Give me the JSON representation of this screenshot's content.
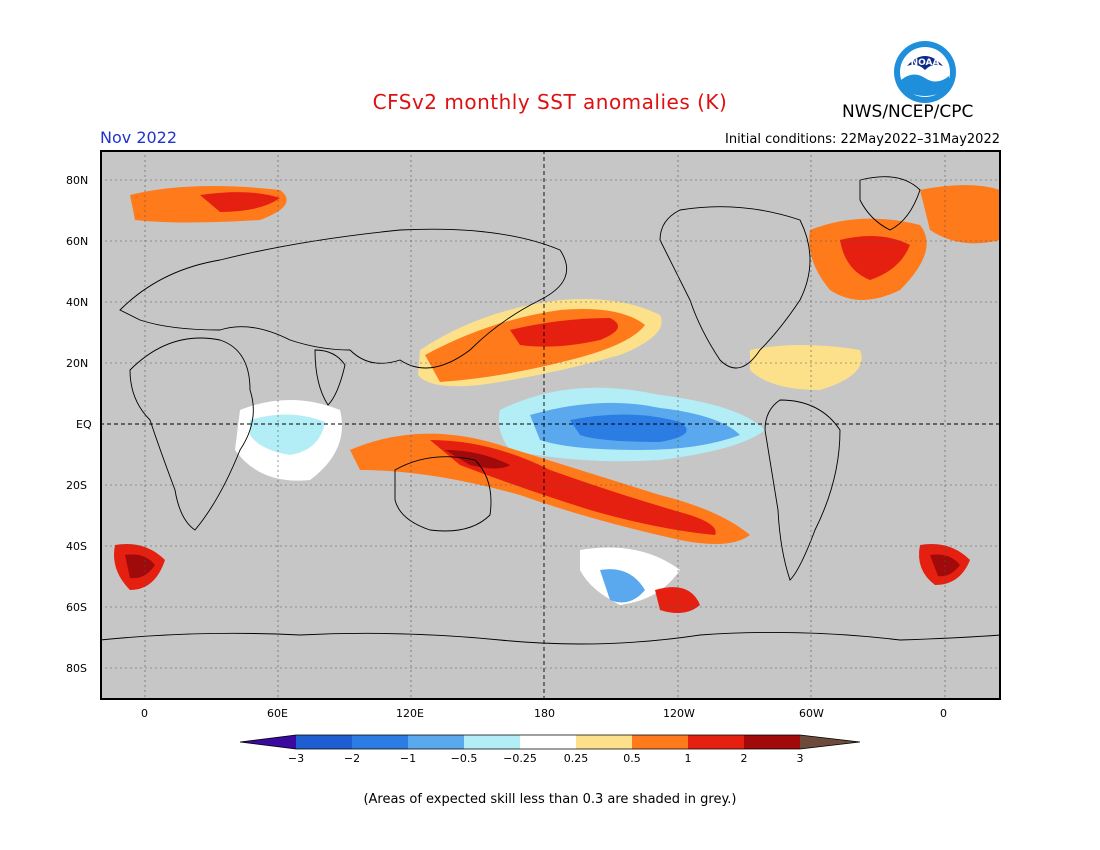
{
  "header": {
    "title": "CFSv2 monthly SST anomalies (K)",
    "agency": "NWS/NCEP/CPC",
    "valid_month": "Nov 2022",
    "initial_conditions": "Initial conditions: 22May2022–31May2022"
  },
  "logo": {
    "text": "NOAA"
  },
  "map": {
    "lat_labels": [
      "80N",
      "60N",
      "40N",
      "20N",
      "EQ",
      "20S",
      "40S",
      "60S",
      "80S"
    ],
    "lon_labels": [
      "0",
      "60E",
      "120E",
      "180",
      "120W",
      "60W",
      "0"
    ],
    "colors": {
      "ocean_grey": "#c6c6c6",
      "land_grey": "#c6c6c6",
      "coast": "#000000"
    }
  },
  "colorbar": {
    "labels": [
      "−3",
      "−2",
      "−1",
      "−0.5",
      "−0.25",
      "0.25",
      "0.5",
      "1",
      "2",
      "3"
    ],
    "colors": [
      "#3a0a9e",
      "#1e5ed2",
      "#2b7de4",
      "#5aa9ee",
      "#b3eef6",
      "#ffffff",
      "#fde08a",
      "#ff7a1a",
      "#e52010",
      "#a10a0a",
      "#6e4a3a"
    ]
  },
  "footnote": "(Areas of expected skill less than 0.3 are shaded in grey.)"
}
